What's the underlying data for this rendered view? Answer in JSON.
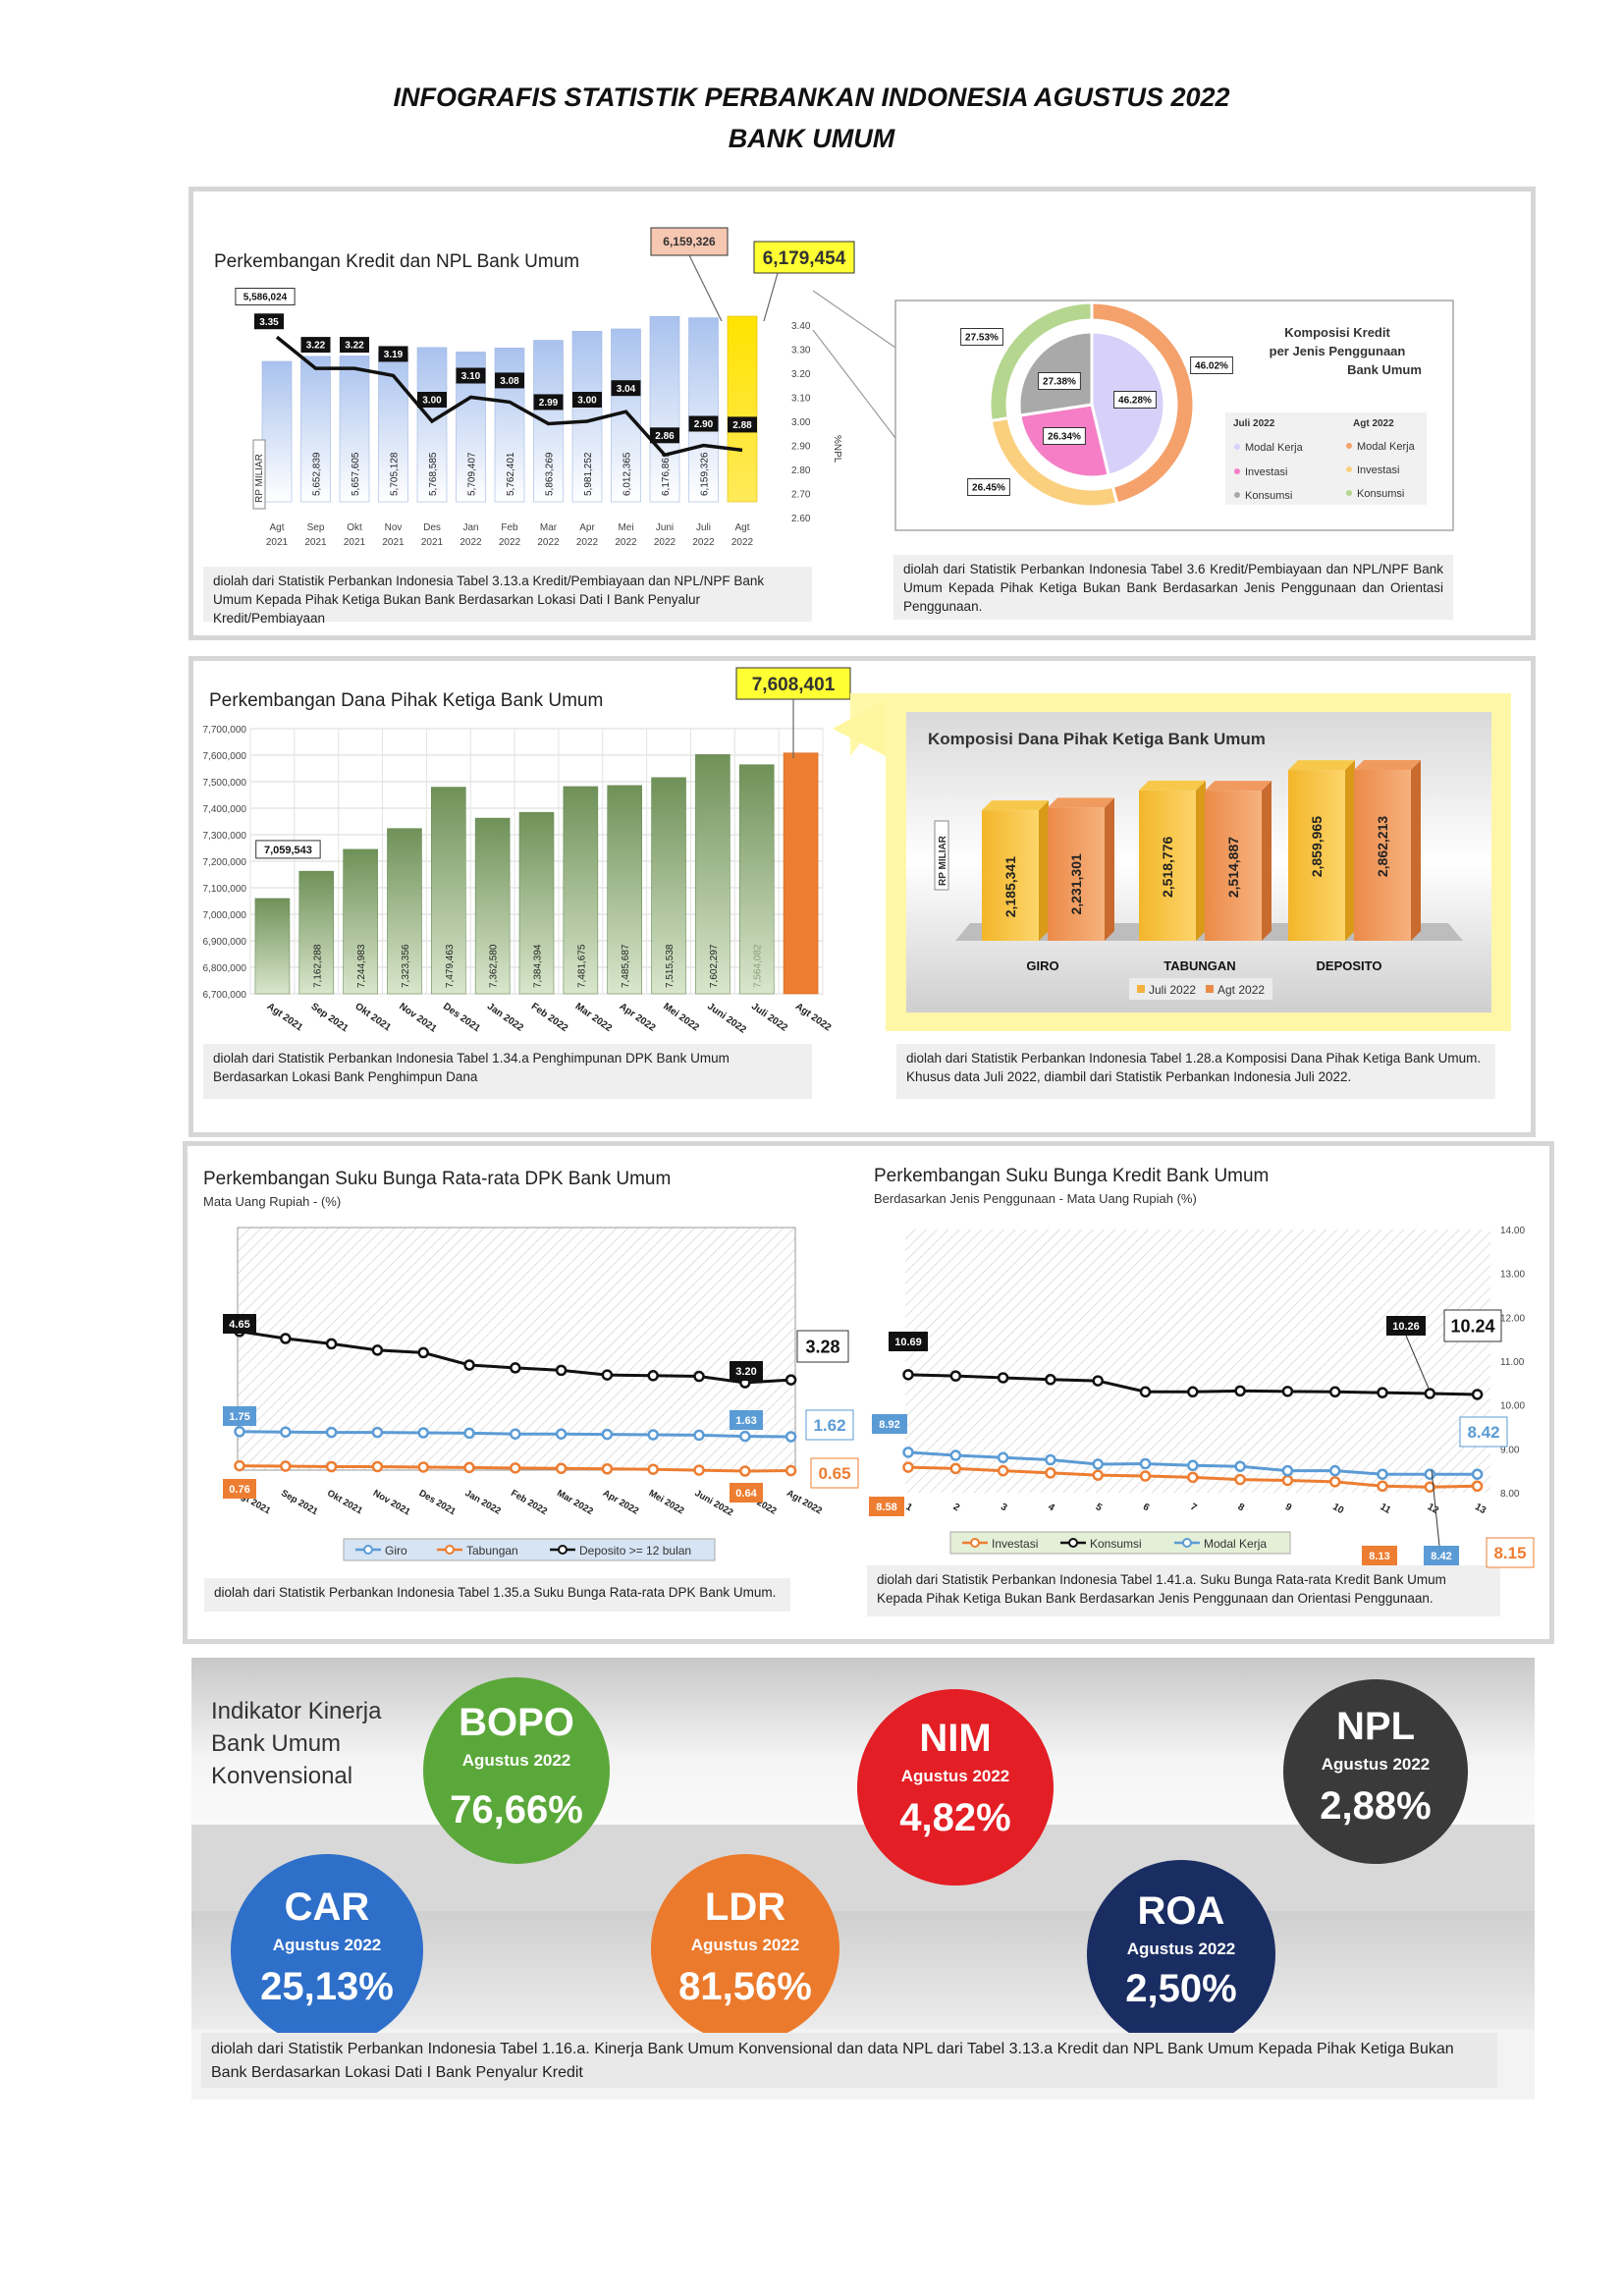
{
  "header": {
    "title": "INFOGRAFIS STATISTIK PERBANKAN INDONESIA AGUSTUS 2022",
    "subtitle": "BANK UMUM"
  },
  "colors": {
    "bar_blue": "#a8c0ec",
    "bar_yellow": "#ffd400",
    "bar_green": "#7f9f66",
    "bar_orange": "#ed7d31",
    "giro": "#5b9bd5",
    "tabungan": "#ed7d31",
    "deposito": "#111111",
    "bopo": "#5aa83a",
    "nim": "#e31e24",
    "npl": "#3a3a3a",
    "car": "#2f6fc9",
    "ldr": "#ec7a2c",
    "roa": "#1a2d63"
  },
  "chart_data": [
    {
      "type": "bar",
      "title": "Perkembangan Kredit dan NPL Bank Umum",
      "categories": [
        "Agt 2021",
        "Sep 2021",
        "Okt 2021",
        "Nov 2021",
        "Des 2021",
        "Jan 2022",
        "Feb 2022",
        "Mar 2022",
        "Apr 2022",
        "Mei 2022",
        "Juni 2022",
        "Juli 2022",
        "Agt 2022"
      ],
      "category_lines": [
        [
          "Agt",
          "2021"
        ],
        [
          "Sep",
          "2021"
        ],
        [
          "Okt",
          "2021"
        ],
        [
          "Nov",
          "2021"
        ],
        [
          "Des",
          "2021"
        ],
        [
          "Jan",
          "2022"
        ],
        [
          "Feb",
          "2022"
        ],
        [
          "Mar",
          "2022"
        ],
        [
          "Apr",
          "2022"
        ],
        [
          "Mei",
          "2022"
        ],
        [
          "Juni",
          "2022"
        ],
        [
          "Juli",
          "2022"
        ],
        [
          "Agt",
          "2022"
        ]
      ],
      "series": [
        {
          "name": "Kredit",
          "axis": "left",
          "values": [
            5586024,
            5652839,
            5657605,
            5705128,
            5768585,
            5709407,
            5762401,
            5863269,
            5981252,
            6012365,
            6176861,
            6159326,
            6179454
          ],
          "labels": [
            "5,586,024",
            "5,652,839",
            "5,657,605",
            "5,705,128",
            "5,768,585",
            "5,709,407",
            "5,762,401",
            "5,863,269",
            "5,981,252",
            "6,012,365",
            "6,176,861",
            "6,159,326",
            "6,179,454"
          ]
        },
        {
          "name": "NPL",
          "axis": "right",
          "type": "line",
          "values": [
            3.35,
            3.22,
            3.22,
            3.19,
            3.0,
            3.1,
            3.08,
            2.99,
            3.0,
            3.04,
            2.86,
            2.9,
            2.88
          ],
          "labels": [
            "3.35",
            "3.22",
            "3.22",
            "3.19",
            "3.00",
            "3.10",
            "3.08",
            "2.99",
            "3.00",
            "3.04",
            "2.86",
            "2.90",
            "2.88"
          ]
        }
      ],
      "ylabel": "RP MILIAR",
      "y2label": "%NPL",
      "y2lim": [
        2.6,
        3.4
      ],
      "y2ticks": [
        "2.60",
        "2.70",
        "2.80",
        "2.90",
        "3.00",
        "3.10",
        "3.20",
        "3.30",
        "3.40"
      ],
      "callout_last": "6,179,454",
      "callout_prev": "6,159,326"
    },
    {
      "type": "pie",
      "title": "Komposisi Kredit per Jenis Penggunaan Bank Umum",
      "title_lines": [
        "Komposisi Kredit",
        "per Jenis Penggunaan",
        "Bank Umum"
      ],
      "categories": [
        "Modal Kerja",
        "Investasi",
        "Konsumsi"
      ],
      "series": [
        {
          "name": "Juli 2022",
          "values": [
            46.28,
            26.34,
            27.38
          ],
          "labels": [
            "46.28%",
            "26.34%",
            "27.38%"
          ]
        },
        {
          "name": "Agt 2022",
          "values": [
            46.02,
            26.45,
            27.53
          ],
          "labels": [
            "46.02%",
            "26.45%",
            "27.53%"
          ]
        }
      ]
    },
    {
      "type": "bar",
      "title": "Perkembangan Dana Pihak Ketiga Bank Umum",
      "categories": [
        "Agt 2021",
        "Sep 2021",
        "Okt 2021",
        "Nov 2021",
        "Des 2021",
        "Jan 2022",
        "Feb 2022",
        "Mar 2022",
        "Apr 2022",
        "Mei 2022",
        "Juni 2022",
        "Juli 2022",
        "Agt 2022"
      ],
      "values": [
        7059543,
        7162288,
        7244983,
        7323356,
        7479463,
        7362580,
        7384394,
        7481675,
        7485687,
        7515538,
        7602297,
        7564082,
        7608401
      ],
      "labels": [
        "7,059,543",
        "7,162,288",
        "7,244,983",
        "7,323,356",
        "7,479,463",
        "7,362,580",
        "7,384,394",
        "7,481,675",
        "7,485,687",
        "7,515,538",
        "7,602,297",
        "7,564,082",
        "7,608,401"
      ],
      "ylim": [
        6700000,
        7700000
      ],
      "yticks": [
        "6,700,000",
        "6,800,000",
        "6,900,000",
        "7,000,000",
        "7,100,000",
        "7,200,000",
        "7,300,000",
        "7,400,000",
        "7,500,000",
        "7,600,000",
        "7,700,000"
      ]
    },
    {
      "type": "bar",
      "title": "Komposisi Dana Pihak Ketiga Bank Umum",
      "categories": [
        "GIRO",
        "TABUNGAN",
        "DEPOSITO"
      ],
      "series": [
        {
          "name": "Juli 2022",
          "values": [
            2185341,
            2518776,
            2859965
          ],
          "labels": [
            "2,185,341",
            "2,518,776",
            "2,859,965"
          ]
        },
        {
          "name": "Agt 2022",
          "values": [
            2231301,
            2514887,
            2862213
          ],
          "labels": [
            "2,231,301",
            "2,514,887",
            "2,862,213"
          ]
        }
      ],
      "ylabel": "RP MILIAR"
    },
    {
      "type": "line",
      "title": "Perkembangan Suku Bunga Rata-rata DPK Bank Umum",
      "subtitle": "Mata Uang Rupiah - (%)",
      "categories": [
        "Agt 2021",
        "Sep 2021",
        "Okt 2021",
        "Nov 2021",
        "Des 2021",
        "Jan 2022",
        "Feb 2022",
        "Mar 2022",
        "Apr 2022",
        "Mei 2022",
        "Juni 2022",
        "Juli 2022",
        "Agt 2022"
      ],
      "series": [
        {
          "name": "Giro",
          "values": [
            1.75,
            1.74,
            1.73,
            1.73,
            1.72,
            1.71,
            1.69,
            1.69,
            1.68,
            1.67,
            1.66,
            1.63,
            1.62
          ]
        },
        {
          "name": "Tabungan",
          "values": [
            0.76,
            0.75,
            0.74,
            0.74,
            0.73,
            0.72,
            0.71,
            0.7,
            0.69,
            0.68,
            0.66,
            0.64,
            0.65
          ]
        },
        {
          "name": "Deposito >= 12 bulan",
          "values": [
            4.65,
            4.45,
            4.3,
            4.12,
            4.05,
            3.7,
            3.62,
            3.55,
            3.42,
            3.4,
            3.38,
            3.2,
            3.28
          ]
        }
      ],
      "point_labels": {
        "giro_first": "1.75",
        "giro_prev": "1.63",
        "giro_last": "1.62",
        "tab_first": "0.76",
        "tab_prev": "0.64",
        "tab_last": "0.65",
        "dep_first": "4.65",
        "dep_prev": "3.20",
        "dep_last": "3.28"
      },
      "ylim": [
        0,
        6
      ]
    },
    {
      "type": "line",
      "title": "Perkembangan Suku Bunga Kredit Bank Umum",
      "subtitle": "Berdasarkan Jenis Penggunaan - Mata Uang Rupiah (%)",
      "categories": [
        "1",
        "2",
        "3",
        "4",
        "5",
        "6",
        "7",
        "8",
        "9",
        "10",
        "11",
        "12",
        "13"
      ],
      "series": [
        {
          "name": "Investasi",
          "values": [
            8.58,
            8.55,
            8.5,
            8.45,
            8.4,
            8.38,
            8.35,
            8.3,
            8.28,
            8.25,
            8.15,
            8.13,
            8.15
          ]
        },
        {
          "name": "Konsumsi",
          "values": [
            10.69,
            10.66,
            10.62,
            10.58,
            10.55,
            10.3,
            10.3,
            10.32,
            10.31,
            10.3,
            10.28,
            10.26,
            10.24
          ]
        },
        {
          "name": "Modal Kerja",
          "values": [
            8.92,
            8.85,
            8.8,
            8.75,
            8.65,
            8.66,
            8.62,
            8.6,
            8.5,
            8.5,
            8.42,
            8.42,
            8.42
          ]
        }
      ],
      "point_labels": {
        "inv_first": "8.58",
        "inv_prev": "8.13",
        "inv_last": "8.15",
        "kon_first": "10.69",
        "kon_prev": "10.26",
        "kon_last": "10.24",
        "mk_first": "8.92",
        "mk_prev": "8.42",
        "mk_last": "8.42"
      },
      "ylim": [
        8.0,
        14.0
      ],
      "yticks": [
        "8.00",
        "9.00",
        "10.00",
        "11.00",
        "12.00",
        "13.00",
        "14.00"
      ]
    }
  ],
  "notes": {
    "kredit": "diolah dari Statistik Perbankan Indonesia Tabel 3.13.a Kredit/Pembiayaan dan NPL/NPF Bank Umum Kepada Pihak Ketiga Bukan Bank Berdasarkan Lokasi Dati I Bank Penyalur Kredit/Pembiayaan",
    "komposisi_kredit": "diolah dari Statistik Perbankan Indonesia Tabel 3.6 Kredit/Pembiayaan dan NPL/NPF Bank Umum Kepada Pihak Ketiga Bukan Bank Berdasarkan Jenis Penggunaan dan Orientasi Penggunaan.",
    "dpk": "diolah dari Statistik Perbankan Indonesia Tabel 1.34.a Penghimpunan DPK Bank Umum Berdasarkan Lokasi Bank Penghimpun Dana",
    "komposisi_dpk": "diolah dari Statistik Perbankan Indonesia Tabel 1.28.a Komposisi Dana Pihak Ketiga Bank Umum. Khusus data Juli 2022, diambil dari Statistik Perbankan Indonesia Juli 2022.",
    "bunga_dpk": "diolah dari Statistik Perbankan Indonesia Tabel 1.35.a Suku Bunga Rata-rata DPK Bank Umum.",
    "bunga_kredit": "diolah dari Statistik Perbankan Indonesia Tabel 1.41.a. Suku Bunga Rata-rata Kredit Bank Umum Kepada Pihak Ketiga Bukan Bank Berdasarkan Jenis Penggunaan dan Orientasi Penggunaan.",
    "kinerja": "diolah dari Statistik Perbankan Indonesia Tabel 1.16.a. Kinerja Bank Umum Konvensional dan data NPL dari Tabel 3.13.a Kredit dan NPL Bank Umum Kepada Pihak Ketiga Bukan Bank Berdasarkan Lokasi Dati I Bank Penyalur Kredit"
  },
  "kpi": {
    "label": "Indikator Kinerja Bank Umum Konvensional",
    "label_lines": [
      "Indikator Kinerja",
      "Bank Umum",
      "Konvensional"
    ],
    "items": {
      "bopo": {
        "name": "BOPO",
        "month": "Agustus 2022",
        "value": "76,66%"
      },
      "nim": {
        "name": "NIM",
        "month": "Agustus 2022",
        "value": "4,82%"
      },
      "npl": {
        "name": "NPL",
        "month": "Agustus 2022",
        "value": "2,88%"
      },
      "car": {
        "name": "CAR",
        "month": "Agustus 2022",
        "value": "25,13%"
      },
      "ldr": {
        "name": "LDR",
        "month": "Agustus 2022",
        "value": "81,56%"
      },
      "roa": {
        "name": "ROA",
        "month": "Agustus 2022",
        "value": "2,50%"
      }
    }
  }
}
